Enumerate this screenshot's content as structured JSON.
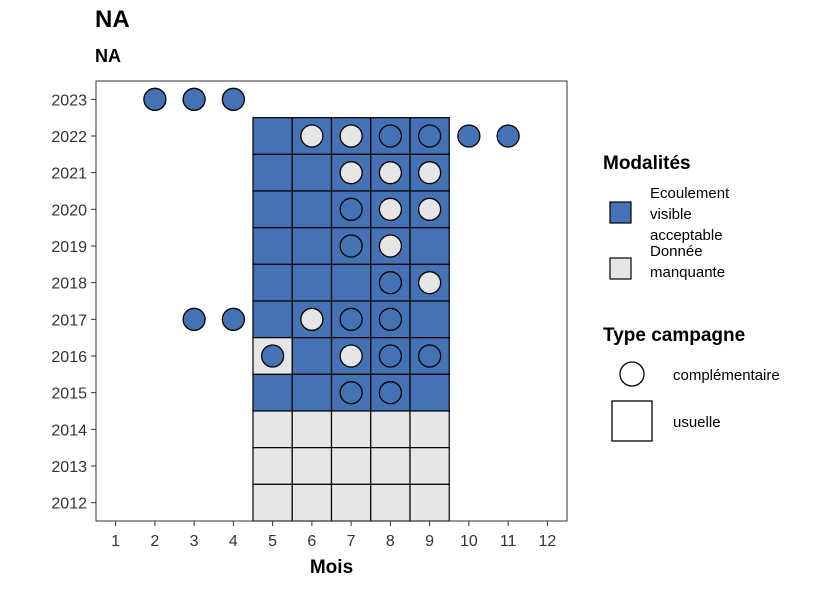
{
  "chart_data": {
    "type": "heatmap",
    "title": "NA",
    "subtitle": "NA",
    "xlabel": "Mois",
    "ylabel": "",
    "x_ticks": [
      1,
      2,
      3,
      4,
      5,
      6,
      7,
      8,
      9,
      10,
      11,
      12
    ],
    "y_ticks": [
      2012,
      2013,
      2014,
      2015,
      2016,
      2017,
      2018,
      2019,
      2020,
      2021,
      2022,
      2023
    ],
    "xlim": [
      0.5,
      12.5
    ],
    "ylim": [
      2011.5,
      2023.5
    ],
    "colors": {
      "ecoulement_visible_acceptable": "#4472b4",
      "donnee_manquante": "#e6e6e6"
    },
    "legend_modalites": {
      "title": "Modalités",
      "items": [
        {
          "key": "ecoulement_visible_acceptable",
          "lines": [
            "Ecoulement",
            "visible",
            "acceptable"
          ]
        },
        {
          "key": "donnee_manquante",
          "lines": [
            "Donnée",
            "manquante"
          ]
        }
      ]
    },
    "legend_type": {
      "title": "Type campagne",
      "items": [
        {
          "shape": "circle",
          "label": "complémentaire"
        },
        {
          "shape": "square",
          "label": "usuelle"
        }
      ]
    },
    "tiles": [
      {
        "year": 2022,
        "month": 5,
        "m": "ecoulement_visible_acceptable"
      },
      {
        "year": 2022,
        "month": 6,
        "m": "ecoulement_visible_acceptable"
      },
      {
        "year": 2022,
        "month": 7,
        "m": "ecoulement_visible_acceptable"
      },
      {
        "year": 2022,
        "month": 8,
        "m": "ecoulement_visible_acceptable"
      },
      {
        "year": 2022,
        "month": 9,
        "m": "ecoulement_visible_acceptable"
      },
      {
        "year": 2021,
        "month": 5,
        "m": "ecoulement_visible_acceptable"
      },
      {
        "year": 2021,
        "month": 6,
        "m": "ecoulement_visible_acceptable"
      },
      {
        "year": 2021,
        "month": 7,
        "m": "ecoulement_visible_acceptable"
      },
      {
        "year": 2021,
        "month": 8,
        "m": "ecoulement_visible_acceptable"
      },
      {
        "year": 2021,
        "month": 9,
        "m": "ecoulement_visible_acceptable"
      },
      {
        "year": 2020,
        "month": 5,
        "m": "ecoulement_visible_acceptable"
      },
      {
        "year": 2020,
        "month": 6,
        "m": "ecoulement_visible_acceptable"
      },
      {
        "year": 2020,
        "month": 7,
        "m": "ecoulement_visible_acceptable"
      },
      {
        "year": 2020,
        "month": 8,
        "m": "ecoulement_visible_acceptable"
      },
      {
        "year": 2020,
        "month": 9,
        "m": "ecoulement_visible_acceptable"
      },
      {
        "year": 2019,
        "month": 5,
        "m": "ecoulement_visible_acceptable"
      },
      {
        "year": 2019,
        "month": 6,
        "m": "ecoulement_visible_acceptable"
      },
      {
        "year": 2019,
        "month": 7,
        "m": "ecoulement_visible_acceptable"
      },
      {
        "year": 2019,
        "month": 8,
        "m": "ecoulement_visible_acceptable"
      },
      {
        "year": 2019,
        "month": 9,
        "m": "ecoulement_visible_acceptable"
      },
      {
        "year": 2018,
        "month": 5,
        "m": "ecoulement_visible_acceptable"
      },
      {
        "year": 2018,
        "month": 6,
        "m": "ecoulement_visible_acceptable"
      },
      {
        "year": 2018,
        "month": 7,
        "m": "ecoulement_visible_acceptable"
      },
      {
        "year": 2018,
        "month": 8,
        "m": "ecoulement_visible_acceptable"
      },
      {
        "year": 2018,
        "month": 9,
        "m": "ecoulement_visible_acceptable"
      },
      {
        "year": 2017,
        "month": 5,
        "m": "ecoulement_visible_acceptable"
      },
      {
        "year": 2017,
        "month": 6,
        "m": "ecoulement_visible_acceptable"
      },
      {
        "year": 2017,
        "month": 7,
        "m": "ecoulement_visible_acceptable"
      },
      {
        "year": 2017,
        "month": 8,
        "m": "ecoulement_visible_acceptable"
      },
      {
        "year": 2017,
        "month": 9,
        "m": "ecoulement_visible_acceptable"
      },
      {
        "year": 2016,
        "month": 5,
        "m": "donnee_manquante"
      },
      {
        "year": 2016,
        "month": 6,
        "m": "ecoulement_visible_acceptable"
      },
      {
        "year": 2016,
        "month": 7,
        "m": "ecoulement_visible_acceptable"
      },
      {
        "year": 2016,
        "month": 8,
        "m": "ecoulement_visible_acceptable"
      },
      {
        "year": 2016,
        "month": 9,
        "m": "ecoulement_visible_acceptable"
      },
      {
        "year": 2015,
        "month": 5,
        "m": "ecoulement_visible_acceptable"
      },
      {
        "year": 2015,
        "month": 6,
        "m": "ecoulement_visible_acceptable"
      },
      {
        "year": 2015,
        "month": 7,
        "m": "ecoulement_visible_acceptable"
      },
      {
        "year": 2015,
        "month": 8,
        "m": "ecoulement_visible_acceptable"
      },
      {
        "year": 2015,
        "month": 9,
        "m": "ecoulement_visible_acceptable"
      },
      {
        "year": 2014,
        "month": 5,
        "m": "donnee_manquante"
      },
      {
        "year": 2014,
        "month": 6,
        "m": "donnee_manquante"
      },
      {
        "year": 2014,
        "month": 7,
        "m": "donnee_manquante"
      },
      {
        "year": 2014,
        "month": 8,
        "m": "donnee_manquante"
      },
      {
        "year": 2014,
        "month": 9,
        "m": "donnee_manquante"
      },
      {
        "year": 2013,
        "month": 5,
        "m": "donnee_manquante"
      },
      {
        "year": 2013,
        "month": 6,
        "m": "donnee_manquante"
      },
      {
        "year": 2013,
        "month": 7,
        "m": "donnee_manquante"
      },
      {
        "year": 2013,
        "month": 8,
        "m": "donnee_manquante"
      },
      {
        "year": 2013,
        "month": 9,
        "m": "donnee_manquante"
      },
      {
        "year": 2012,
        "month": 5,
        "m": "donnee_manquante"
      },
      {
        "year": 2012,
        "month": 6,
        "m": "donnee_manquante"
      },
      {
        "year": 2012,
        "month": 7,
        "m": "donnee_manquante"
      },
      {
        "year": 2012,
        "month": 8,
        "m": "donnee_manquante"
      },
      {
        "year": 2012,
        "month": 9,
        "m": "donnee_manquante"
      }
    ],
    "points": [
      {
        "year": 2023,
        "month": 2,
        "m": "ecoulement_visible_acceptable"
      },
      {
        "year": 2023,
        "month": 3,
        "m": "ecoulement_visible_acceptable"
      },
      {
        "year": 2023,
        "month": 4,
        "m": "ecoulement_visible_acceptable"
      },
      {
        "year": 2022,
        "month": 6,
        "m": "donnee_manquante"
      },
      {
        "year": 2022,
        "month": 7,
        "m": "donnee_manquante"
      },
      {
        "year": 2022,
        "month": 8,
        "m": "ecoulement_visible_acceptable"
      },
      {
        "year": 2022,
        "month": 9,
        "m": "ecoulement_visible_acceptable"
      },
      {
        "year": 2022,
        "month": 10,
        "m": "ecoulement_visible_acceptable"
      },
      {
        "year": 2022,
        "month": 11,
        "m": "ecoulement_visible_acceptable"
      },
      {
        "year": 2021,
        "month": 7,
        "m": "donnee_manquante"
      },
      {
        "year": 2021,
        "month": 8,
        "m": "donnee_manquante"
      },
      {
        "year": 2021,
        "month": 9,
        "m": "donnee_manquante"
      },
      {
        "year": 2020,
        "month": 7,
        "m": "ecoulement_visible_acceptable"
      },
      {
        "year": 2020,
        "month": 8,
        "m": "donnee_manquante"
      },
      {
        "year": 2020,
        "month": 9,
        "m": "donnee_manquante"
      },
      {
        "year": 2019,
        "month": 7,
        "m": "ecoulement_visible_acceptable"
      },
      {
        "year": 2019,
        "month": 8,
        "m": "donnee_manquante"
      },
      {
        "year": 2018,
        "month": 8,
        "m": "ecoulement_visible_acceptable"
      },
      {
        "year": 2018,
        "month": 9,
        "m": "donnee_manquante"
      },
      {
        "year": 2017,
        "month": 3,
        "m": "ecoulement_visible_acceptable"
      },
      {
        "year": 2017,
        "month": 4,
        "m": "ecoulement_visible_acceptable"
      },
      {
        "year": 2017,
        "month": 6,
        "m": "donnee_manquante"
      },
      {
        "year": 2017,
        "month": 7,
        "m": "ecoulement_visible_acceptable"
      },
      {
        "year": 2017,
        "month": 8,
        "m": "ecoulement_visible_acceptable"
      },
      {
        "year": 2016,
        "month": 5,
        "m": "ecoulement_visible_acceptable"
      },
      {
        "year": 2016,
        "month": 7,
        "m": "donnee_manquante"
      },
      {
        "year": 2016,
        "month": 8,
        "m": "ecoulement_visible_acceptable"
      },
      {
        "year": 2016,
        "month": 9,
        "m": "ecoulement_visible_acceptable"
      },
      {
        "year": 2015,
        "month": 7,
        "m": "ecoulement_visible_acceptable"
      },
      {
        "year": 2015,
        "month": 8,
        "m": "ecoulement_visible_acceptable"
      }
    ]
  }
}
